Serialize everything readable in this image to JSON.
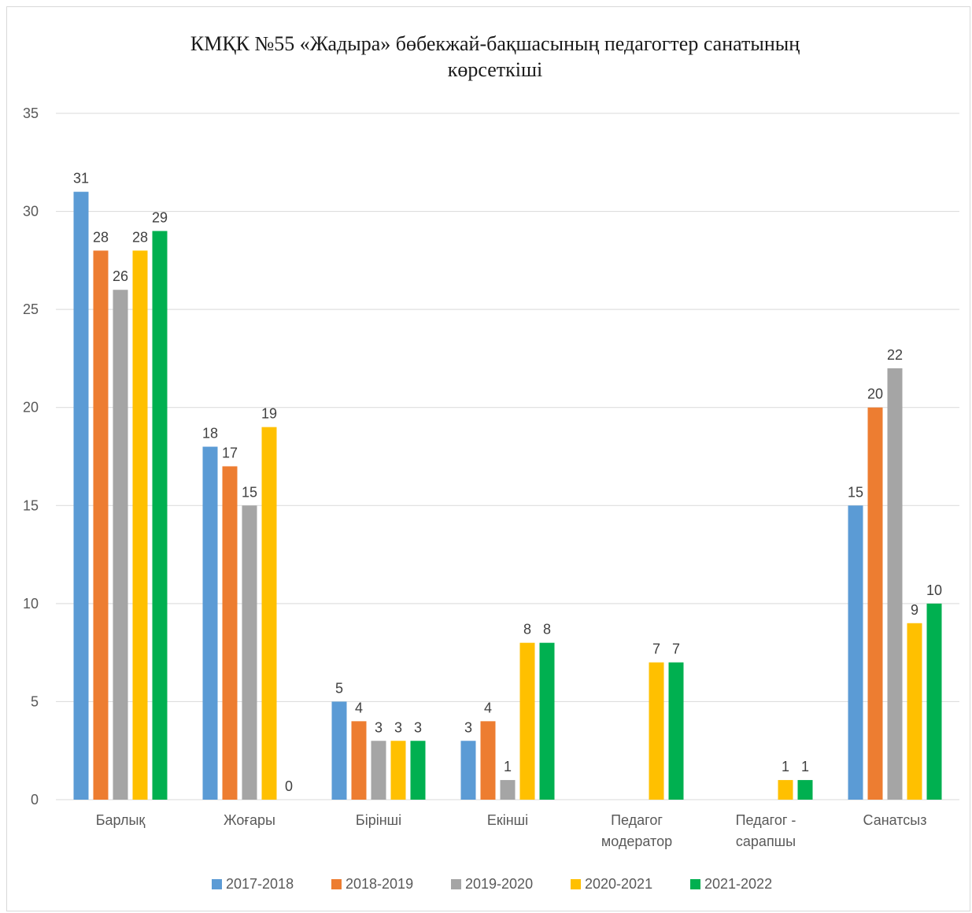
{
  "chart_data": {
    "type": "bar",
    "title": "КМҚК №55 «Жадыра» бөбекжай-бақшасының педагогтер санатының көрсеткіші",
    "title_lines": [
      "КМҚК №55 «Жадыра» бөбекжай-бақшасының педагогтер санатының",
      "көрсеткіші"
    ],
    "categories": [
      "Барлық",
      "Жоғары",
      "Бірінші",
      "Екінші",
      "Педагог модератор",
      "Педагог - сарапшы",
      "Санатсыз"
    ],
    "category_lines": [
      [
        "Барлық"
      ],
      [
        "Жоғары"
      ],
      [
        "Бірінші"
      ],
      [
        "Екінші"
      ],
      [
        "Педагог",
        "модератор"
      ],
      [
        "Педагог -",
        "сарапшы"
      ],
      [
        "Санатсыз"
      ]
    ],
    "series": [
      {
        "name": "2017-2018",
        "color": "#5b9bd5",
        "values": [
          31,
          18,
          5,
          3,
          null,
          null,
          15
        ]
      },
      {
        "name": "2018-2019",
        "color": "#ed7d31",
        "values": [
          28,
          17,
          4,
          4,
          null,
          null,
          20
        ]
      },
      {
        "name": "2019-2020",
        "color": "#a5a5a5",
        "values": [
          26,
          15,
          3,
          1,
          null,
          null,
          22
        ]
      },
      {
        "name": "2020-2021",
        "color": "#ffc000",
        "values": [
          28,
          19,
          3,
          8,
          7,
          1,
          9
        ]
      },
      {
        "name": "2021-2022",
        "color": "#00b050",
        "values": [
          29,
          0,
          3,
          8,
          7,
          1,
          10
        ]
      }
    ],
    "ylim": [
      0,
      35
    ],
    "yticks": [
      0,
      5,
      10,
      15,
      20,
      25,
      30,
      35
    ],
    "grid": true,
    "legend": "bottom",
    "xlabel": "",
    "ylabel": ""
  }
}
